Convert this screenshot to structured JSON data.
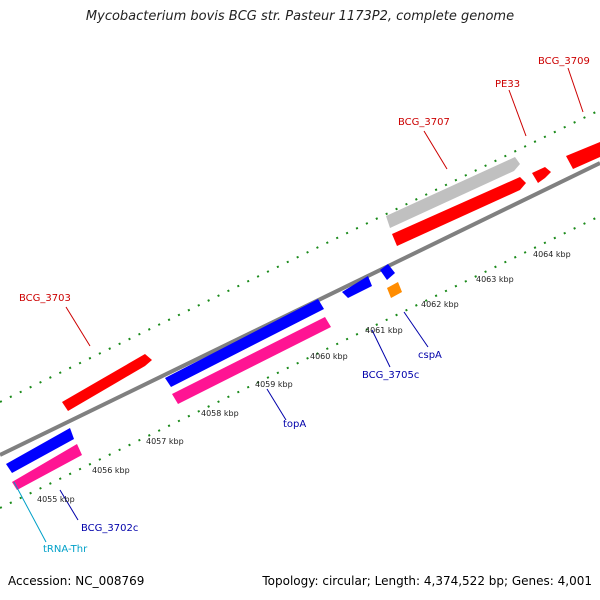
{
  "title": "Mycobacterium bovis BCG str. Pasteur 1173P2, complete genome",
  "accession": "Accession: NC_008769",
  "summary": "Topology: circular; Length: 4,374,522 bp; Genes: 4,001",
  "colors": {
    "backbone": "#808080",
    "ticks": "#1a8a1a",
    "cds_forward": "#ff0000",
    "cds_reverse": "#0000ff",
    "rna_reverse": "#ff1493",
    "pseudo": "#c0c0c0",
    "trna": "#ff8c00",
    "label_red": "#cc0000",
    "label_blue": "#0000aa",
    "label_cyan": "#00a0c8"
  },
  "scale_labels": [
    "4055 kbp",
    "4056 kbp",
    "4057 kbp",
    "4058 kbp",
    "4059 kbp",
    "4060 kbp",
    "4061 kbp",
    "4062 kbp",
    "4063 kbp",
    "4064 kbp"
  ],
  "feature_labels": [
    {
      "text": "BCG_3709",
      "color": "label_red"
    },
    {
      "text": "PE33",
      "color": "label_red"
    },
    {
      "text": "BCG_3707",
      "color": "label_red"
    },
    {
      "text": "BCG_3703",
      "color": "label_red"
    },
    {
      "text": "cspA",
      "color": "label_blue"
    },
    {
      "text": "BCG_3705c",
      "color": "label_blue"
    },
    {
      "text": "topA",
      "color": "label_blue"
    },
    {
      "text": "BCG_3702c",
      "color": "label_blue"
    },
    {
      "text": "tRNA-Thr",
      "color": "label_cyan"
    }
  ]
}
